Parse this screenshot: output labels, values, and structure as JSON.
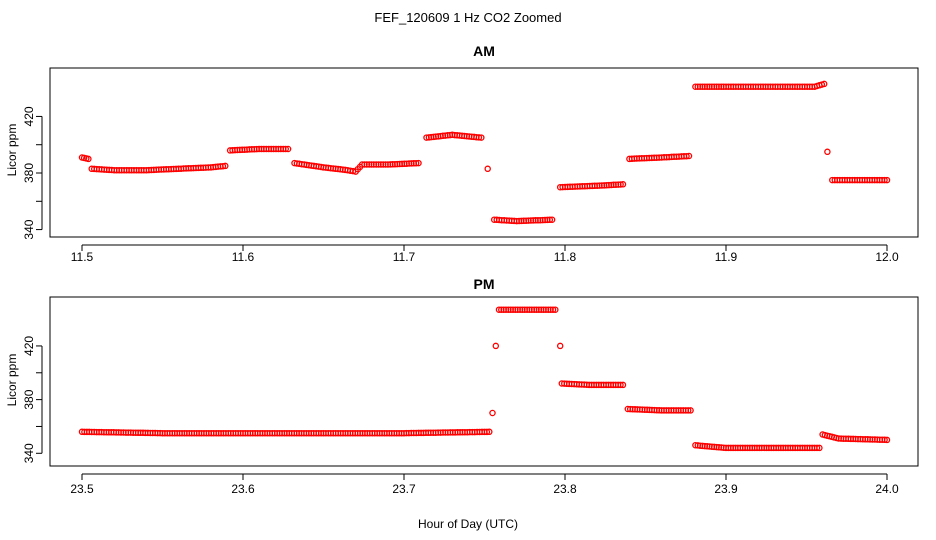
{
  "figure": {
    "title": "FEF_120609 1 Hz CO2 Zoomed",
    "xlabel": "Hour of Day (UTC)"
  },
  "colors": {
    "points": "#ff0000",
    "axis": "#000000"
  },
  "chart_data": [
    {
      "type": "scatter",
      "title": "AM",
      "xlabel": "",
      "ylabel": "Licor ppm",
      "xlim": [
        11.5,
        12.0
      ],
      "ylim": [
        339,
        450
      ],
      "xticks": [
        11.5,
        11.6,
        11.7,
        11.8,
        11.9,
        12.0
      ],
      "xtick_labels": [
        "11.5",
        "11.6",
        "11.7",
        "11.8",
        "11.9",
        "12.0"
      ],
      "yticks": [
        340,
        380,
        420
      ],
      "ytick_labels": [
        "340",
        "380",
        "420"
      ],
      "grid": false,
      "series": [
        {
          "points": [
            [
              11.5,
              391
            ],
            [
              11.504,
              390
            ],
            [
              11.506,
              383
            ],
            [
              11.52,
              382
            ],
            [
              11.54,
              382
            ],
            [
              11.56,
              383
            ],
            [
              11.58,
              384
            ],
            [
              11.589,
              385
            ],
            [
              11.592,
              396
            ],
            [
              11.61,
              397
            ],
            [
              11.628,
              397
            ],
            [
              11.632,
              387
            ],
            [
              11.65,
              384
            ],
            [
              11.665,
              382
            ],
            [
              11.67,
              381
            ],
            [
              11.674,
              386
            ],
            [
              11.69,
              386
            ],
            [
              11.709,
              387
            ],
            [
              11.714,
              405
            ],
            [
              11.73,
              407
            ],
            [
              11.748,
              405
            ],
            [
              11.752,
              383
            ],
            [
              11.756,
              347
            ],
            [
              11.77,
              346
            ],
            [
              11.792,
              347
            ],
            [
              11.797,
              370
            ],
            [
              11.82,
              371
            ],
            [
              11.836,
              372
            ],
            [
              11.84,
              390
            ],
            [
              11.86,
              391
            ],
            [
              11.877,
              392
            ],
            [
              11.881,
              441
            ],
            [
              11.9,
              441
            ],
            [
              11.92,
              441
            ],
            [
              11.955,
              441
            ],
            [
              11.961,
              443
            ],
            [
              11.963,
              395
            ],
            [
              11.966,
              375
            ],
            [
              11.98,
              375
            ],
            [
              12.0,
              375
            ]
          ]
        }
      ]
    },
    {
      "type": "scatter",
      "title": "PM",
      "xlabel": "Hour of Day (UTC)",
      "ylabel": "Licor ppm",
      "xlim": [
        23.5,
        24.0
      ],
      "ylim": [
        335,
        452
      ],
      "xticks": [
        23.5,
        23.6,
        23.7,
        23.8,
        23.9,
        24.0
      ],
      "xtick_labels": [
        "23.5",
        "23.6",
        "23.7",
        "23.8",
        "23.9",
        "24.0"
      ],
      "yticks": [
        340,
        380,
        420
      ],
      "ytick_labels": [
        "340",
        "380",
        "420"
      ],
      "grid": false,
      "series": [
        {
          "points": [
            [
              23.5,
              356
            ],
            [
              23.55,
              355
            ],
            [
              23.6,
              355
            ],
            [
              23.65,
              355
            ],
            [
              23.7,
              355
            ],
            [
              23.753,
              356
            ],
            [
              23.755,
              370
            ],
            [
              23.757,
              420
            ],
            [
              23.759,
              447
            ],
            [
              23.775,
              447
            ],
            [
              23.794,
              447
            ],
            [
              23.797,
              420
            ],
            [
              23.798,
              392
            ],
            [
              23.815,
              391
            ],
            [
              23.836,
              391
            ],
            [
              23.839,
              373
            ],
            [
              23.86,
              372
            ],
            [
              23.878,
              372
            ],
            [
              23.881,
              346
            ],
            [
              23.9,
              344
            ],
            [
              23.94,
              344
            ],
            [
              23.958,
              344
            ],
            [
              23.96,
              354
            ],
            [
              23.97,
              351
            ],
            [
              24.0,
              350
            ]
          ]
        }
      ]
    }
  ]
}
